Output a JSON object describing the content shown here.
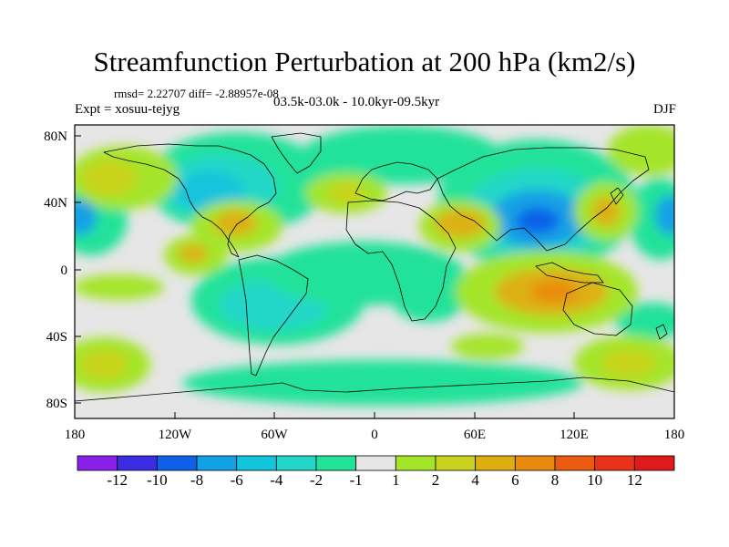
{
  "title": "Streamfunction Perturbation at 200 hPa (km2/s)",
  "stats": "rmsd= 2.22707 diff= -2.88957e-08",
  "experiment": "Expt = xosuu-tejyg",
  "period": "03.5k-03.0k - 10.0kyr-09.5kyr",
  "season": "DJF",
  "lat_labels": [
    "80N",
    "40N",
    "0",
    "40S",
    "80S"
  ],
  "lon_labels": [
    "180",
    "120W",
    "60W",
    "0",
    "60E",
    "120E",
    "180"
  ],
  "colorbar": {
    "labels": [
      "-12",
      "-10",
      "-8",
      "-6",
      "-4",
      "-2",
      "-1",
      "1",
      "2",
      "4",
      "6",
      "8",
      "10",
      "12"
    ],
    "colors": [
      "#8a1fe8",
      "#3a2ce0",
      "#1060e8",
      "#14a0e6",
      "#12c4dc",
      "#22d7c7",
      "#22e29a",
      "#e6e6e6",
      "#a4e52a",
      "#c9d31e",
      "#ddb012",
      "#ea8a10",
      "#ec5b12",
      "#e8321a",
      "#e01a1a"
    ]
  },
  "colors": {
    "ocean_neutral": "#e6e6e6",
    "neg_light": "#22e29a",
    "neg_mid": "#22d7c7",
    "neg_strong": "#12c4dc",
    "neg_stronger": "#14a0e6",
    "neg_core": "#1060e8",
    "pos_light": "#a4e52a",
    "pos_mid": "#c9d31e",
    "pos_strong": "#ddb012",
    "pos_core": "#ea8a10"
  }
}
